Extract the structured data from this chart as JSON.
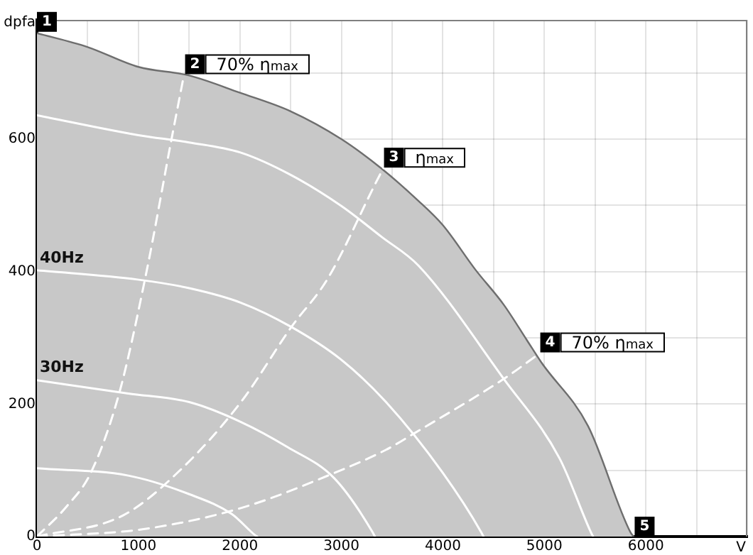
{
  "chart_data": {
    "type": "line",
    "xlabel": "V",
    "ylabel": "dpfa",
    "marker": "none",
    "grid": true,
    "xlim": [
      0,
      7000
    ],
    "ylim": [
      0,
      780
    ],
    "xticks": [
      0,
      {
        "value": 500,
        "label": null
      },
      1000,
      {
        "value": 1500,
        "label": null
      },
      2000,
      {
        "value": 2500,
        "label": null
      },
      3000,
      {
        "value": 3500,
        "label": null
      },
      4000,
      {
        "value": 4500,
        "label": null
      },
      5000,
      {
        "value": 5500,
        "label": null
      },
      6000,
      {
        "value": 6500,
        "label": null
      },
      {
        "value": 7000,
        "label": null
      }
    ],
    "yticks": [
      0,
      {
        "value": 100,
        "label": null
      },
      200,
      {
        "value": 300,
        "label": null
      },
      400,
      {
        "value": 500,
        "label": null
      },
      600,
      {
        "value": 700,
        "label": null
      }
    ],
    "series": [
      {
        "type": "area",
        "color": "#c8c8c8",
        "x": [
          0,
          500,
          1000,
          1500,
          2000,
          2500,
          3000,
          3400,
          3750,
          4000,
          4320,
          4600,
          4830,
          4970,
          5430,
          5850,
          5880
        ],
        "values": [
          760,
          739,
          709,
          696,
          670,
          642,
          600,
          555,
          508,
          470,
          403,
          350,
          296,
          263,
          167,
          6,
          0
        ]
      },
      {
        "color": "#ffffff",
        "x": [
          0,
          1000,
          1500,
          2000,
          2500,
          3000,
          3400,
          3760,
          4600,
          5150,
          5460,
          5480
        ],
        "values": [
          636,
          606,
          595,
          580,
          546,
          499,
          452,
          409,
          238,
          118,
          6,
          0
        ]
      },
      {
        "name": "40Hz",
        "color": "#ffffff",
        "x": [
          0,
          990,
          1500,
          2010,
          2500,
          2990,
          3440,
          4000,
          4380,
          4400
        ],
        "values": [
          402,
          388,
          375,
          353,
          317,
          268,
          203,
          96,
          6,
          0
        ]
      },
      {
        "name": "30Hz",
        "color": "#ffffff",
        "x": [
          0,
          900,
          1500,
          2010,
          2470,
          2930,
          3310,
          3330
        ],
        "values": [
          236,
          216,
          203,
          173,
          135,
          88,
          6,
          0
        ]
      },
      {
        "color": "#ffffff",
        "x": [
          0,
          900,
          1500,
          1920,
          2150,
          2170
        ],
        "values": [
          103,
          92,
          64,
          34,
          2,
          0
        ]
      },
      {
        "color": "#ffffff",
        "line_style": "dashed",
        "x": [
          0,
          290,
          530,
          810,
          1080,
          1320,
          1440
        ],
        "values": [
          0,
          45,
          96,
          216,
          400,
          595,
          690
        ]
      },
      {
        "color": "#ffffff",
        "line_style": "dashed",
        "x": [
          0,
          850,
          1430,
          2010,
          2510,
          2860,
          3400,
          3430
        ],
        "values": [
          0,
          32,
          103,
          203,
          317,
          388,
          552,
          560
        ]
      },
      {
        "color": "#ffffff",
        "line_style": "dashed",
        "x": [
          0,
          1040,
          2010,
          2930,
          3440,
          3720,
          4600,
          4940
        ],
        "values": [
          0,
          11,
          43,
          96,
          131,
          156,
          238,
          275
        ]
      }
    ],
    "annotations": [
      {
        "text": "1",
        "x": 0,
        "y": 762
      },
      {
        "text": "2",
        "x": 1460,
        "y": 698
      },
      {
        "text": "70% η$_{max}$",
        "x": 1460,
        "y": 698
      },
      {
        "text": "3",
        "x": 3420,
        "y": 557
      },
      {
        "text": "η$_{max}$",
        "x": 3420,
        "y": 557
      },
      {
        "text": "4",
        "x": 4960,
        "y": 278
      },
      {
        "text": "70% η$_{max}$",
        "x": 4960,
        "y": 278
      },
      {
        "text": "5",
        "x": 5890,
        "y": 0
      }
    ]
  }
}
